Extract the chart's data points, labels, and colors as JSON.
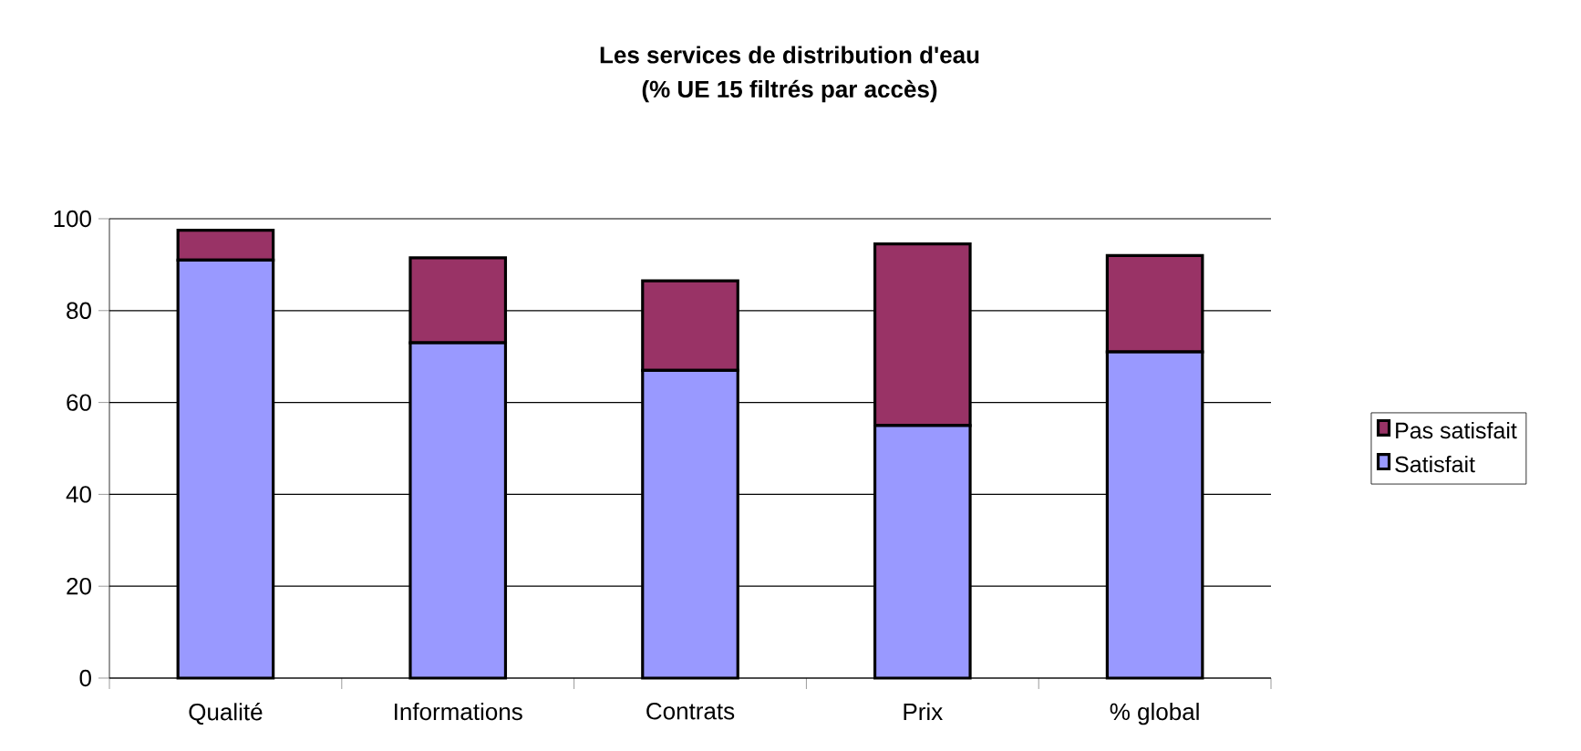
{
  "chart_data": {
    "type": "bar",
    "title": "Les services de distribution d'eau",
    "subtitle": "(% UE 15 filtrés par accès)",
    "categories": [
      "Qualité",
      "Informations",
      "Contrats",
      "Prix",
      "% global"
    ],
    "series": [
      {
        "name": "Satisfait",
        "color": "#9999ff",
        "values": [
          91,
          73,
          67,
          55,
          71
        ]
      },
      {
        "name": "Pas satisfait",
        "color": "#993366",
        "values": [
          6.5,
          18.5,
          19.5,
          39.5,
          21
        ]
      }
    ],
    "stacked": true,
    "ylim": [
      0,
      100
    ],
    "yticks": [
      0,
      20,
      40,
      60,
      80,
      100
    ],
    "grid": "y",
    "legend": "right"
  }
}
